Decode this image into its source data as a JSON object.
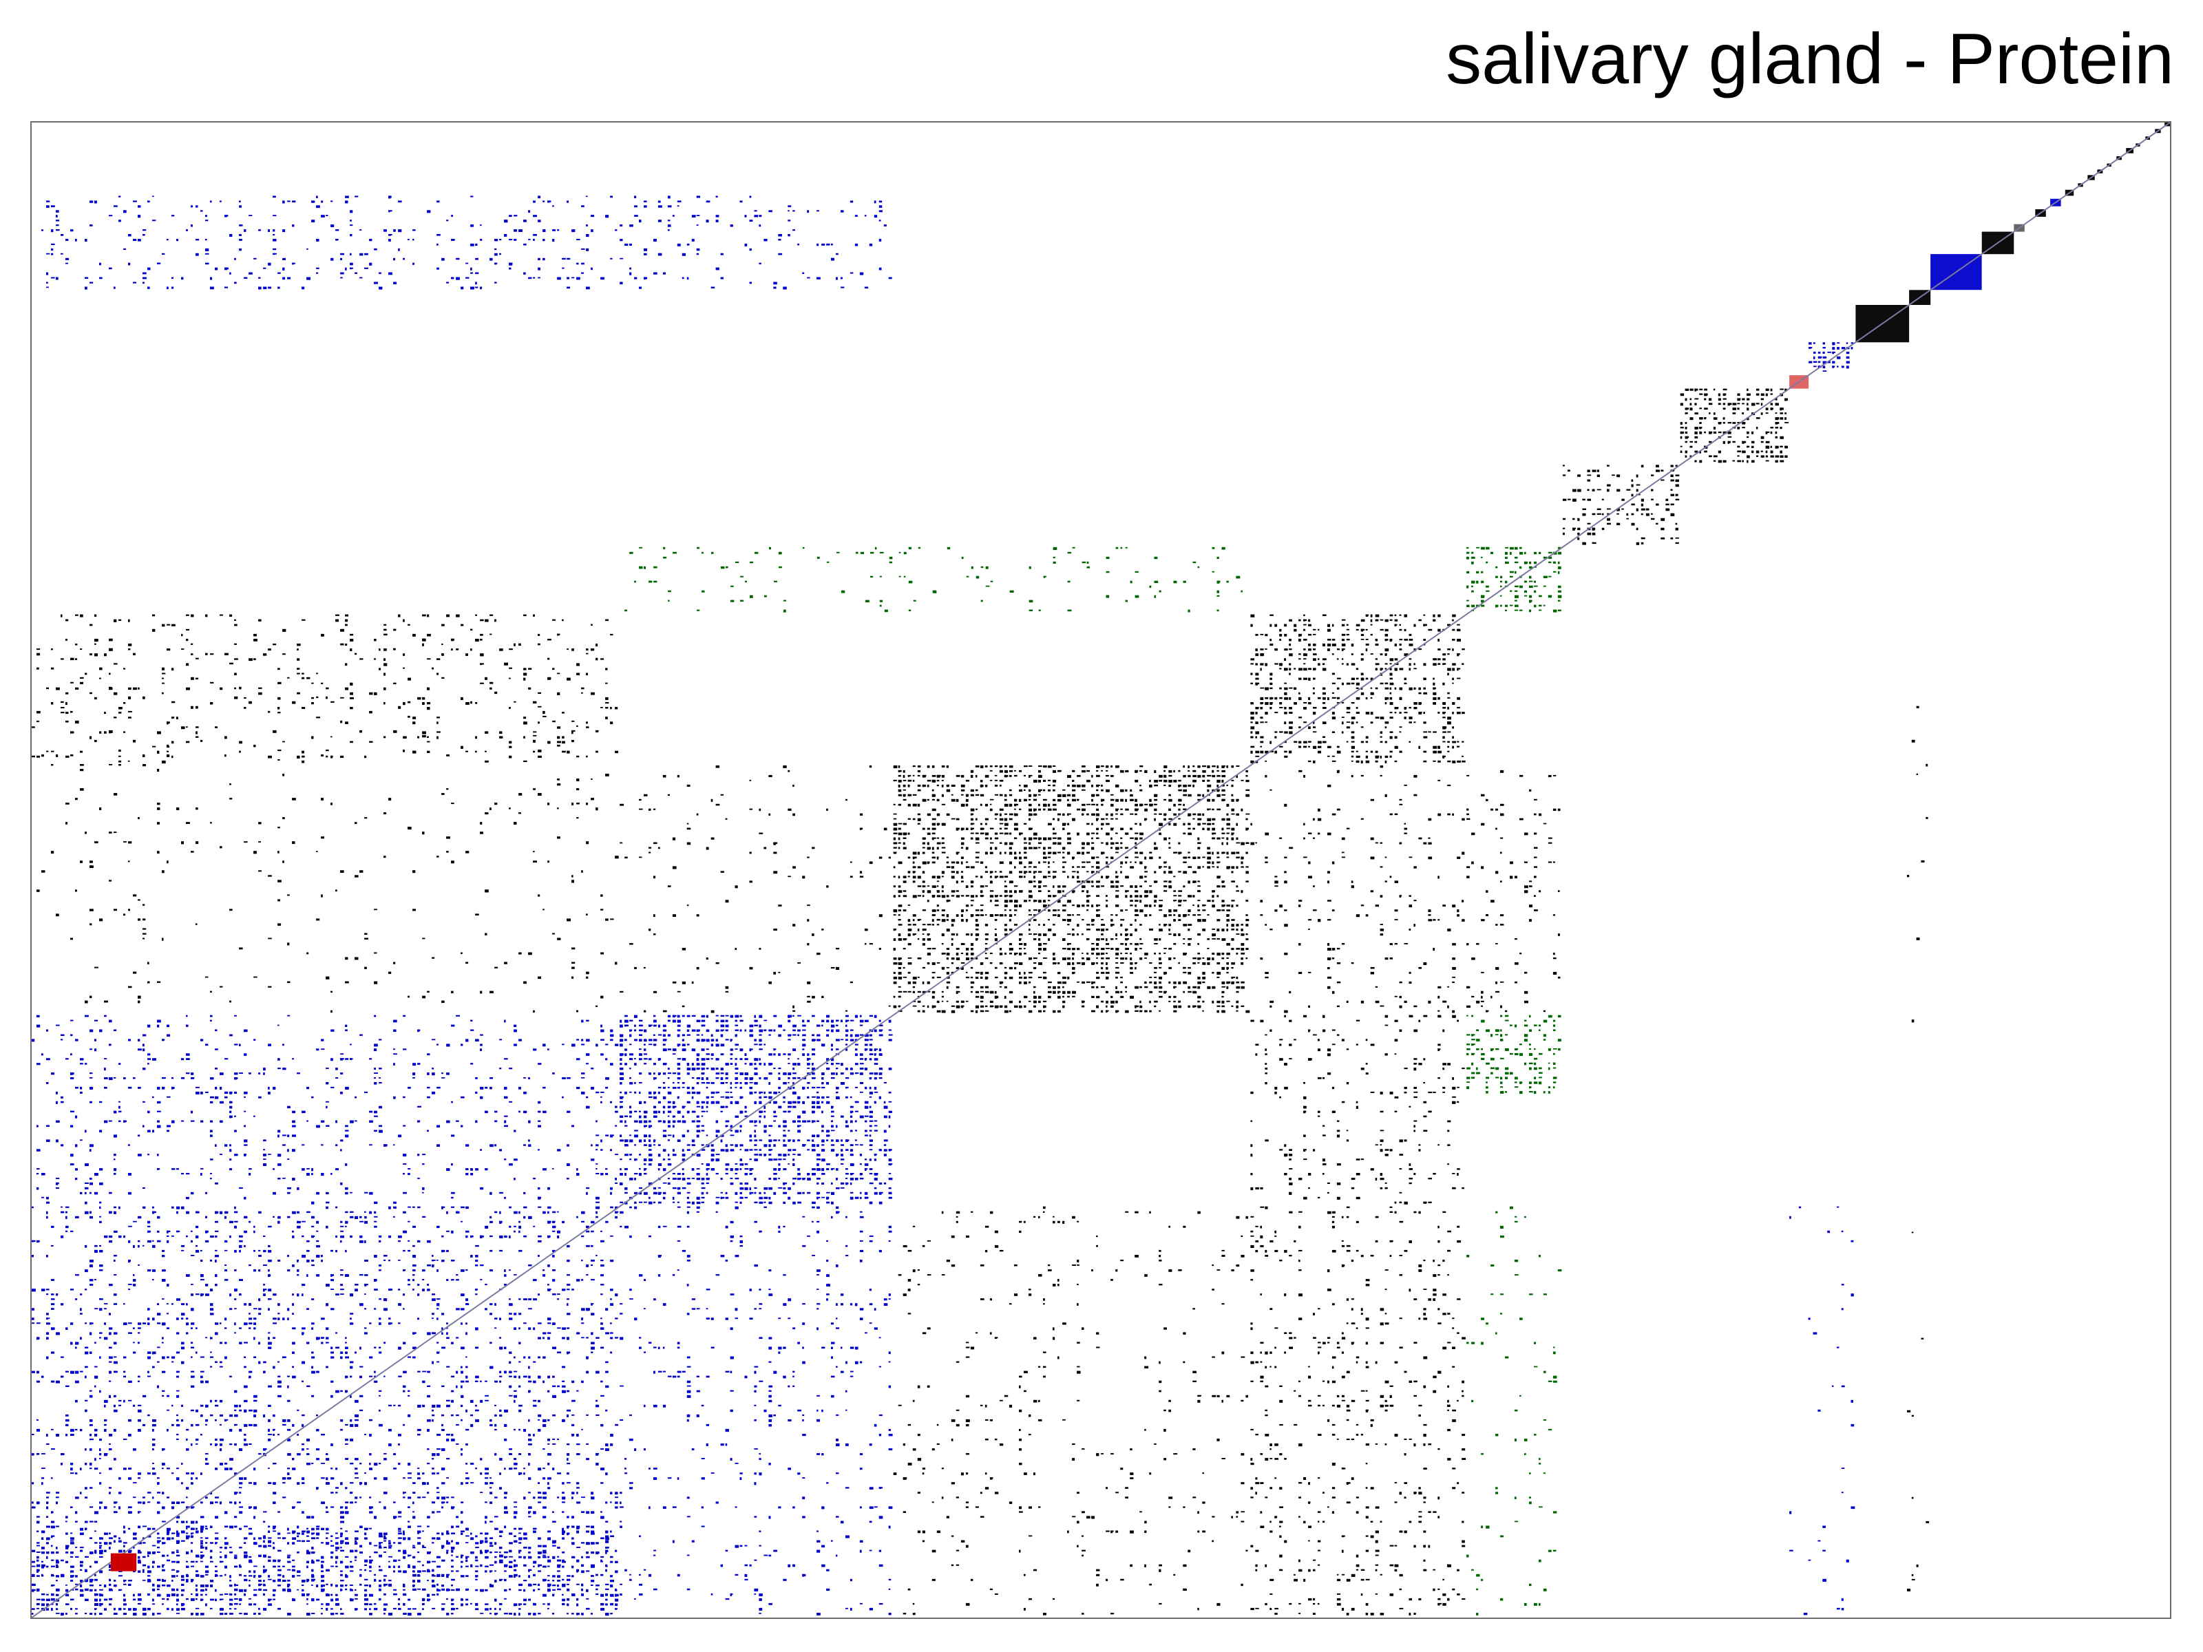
{
  "chart_data": {
    "type": "heatmap",
    "title": "salivary gland - Protein",
    "xlabel": "",
    "ylabel": "",
    "legend": "none",
    "grid": false,
    "colors": {
      "default_cell": "#000000",
      "cluster_blue": "#0000cc",
      "cluster_green": "#006600",
      "highlight_red": "#cc0000",
      "frame": "#6e6e6e",
      "diagonal": "#7a7aa0",
      "background": "#ffffff"
    },
    "clusters": [
      {
        "from": 0.0,
        "to": 0.275,
        "color": "blue",
        "density": 0.5
      },
      {
        "from": 0.275,
        "to": 0.403,
        "color": "blue",
        "density": 0.78
      },
      {
        "from": 0.403,
        "to": 0.57,
        "color": "black",
        "density": 0.72
      },
      {
        "from": 0.57,
        "to": 0.671,
        "color": "black",
        "density": 0.55
      },
      {
        "from": 0.671,
        "to": 0.716,
        "color": "green",
        "density": 0.6
      },
      {
        "from": 0.716,
        "to": 0.771,
        "color": "black",
        "density": 0.4
      },
      {
        "from": 0.771,
        "to": 0.822,
        "color": "black",
        "density": 0.85
      },
      {
        "from": 0.822,
        "to": 0.831,
        "color": "red",
        "density": 0.6
      },
      {
        "from": 0.831,
        "to": 0.853,
        "color": "blue",
        "density": 0.9
      },
      {
        "from": 0.853,
        "to": 0.878,
        "color": "black",
        "density": 1.0
      },
      {
        "from": 0.878,
        "to": 0.888,
        "color": "black",
        "density": 1.0
      },
      {
        "from": 0.888,
        "to": 0.912,
        "color": "blue",
        "density": 1.0
      },
      {
        "from": 0.912,
        "to": 0.927,
        "color": "black",
        "density": 1.0
      },
      {
        "from": 0.927,
        "to": 0.932,
        "color": "black",
        "density": 0.4
      },
      {
        "from": 0.937,
        "to": 0.942,
        "color": "black",
        "density": 1.0
      },
      {
        "from": 0.944,
        "to": 0.949,
        "color": "blue",
        "density": 1.0
      },
      {
        "from": 0.951,
        "to": 0.955,
        "color": "black",
        "density": 1.0
      }
    ],
    "off_diagonal_blocks": [
      {
        "x": [
          0.0,
          0.275
        ],
        "y": [
          0.0,
          0.06
        ],
        "color": "blue",
        "density": 0.5
      },
      {
        "x": [
          0.0,
          0.275
        ],
        "y": [
          0.275,
          0.403
        ],
        "color": "blue",
        "density": 0.15
      },
      {
        "x": [
          0.0,
          0.275
        ],
        "y": [
          0.57,
          0.671
        ],
        "color": "black",
        "density": 0.1
      },
      {
        "x": [
          0.275,
          0.403
        ],
        "y": [
          0.0,
          0.275
        ],
        "color": "blue",
        "density": 0.1
      },
      {
        "x": [
          0.403,
          0.57
        ],
        "y": [
          0.0,
          0.275
        ],
        "color": "black",
        "density": 0.06
      },
      {
        "x": [
          0.57,
          0.671
        ],
        "y": [
          0.0,
          0.275
        ],
        "color": "black",
        "density": 0.15
      },
      {
        "x": [
          0.57,
          0.671
        ],
        "y": [
          0.275,
          0.403
        ],
        "color": "black",
        "density": 0.15
      },
      {
        "x": [
          0.57,
          0.671
        ],
        "y": [
          0.403,
          0.57
        ],
        "color": "black",
        "density": 0.1
      },
      {
        "x": [
          0.671,
          0.716
        ],
        "y": [
          0.403,
          0.57
        ],
        "color": "black",
        "density": 0.12
      },
      {
        "x": [
          0.671,
          0.716
        ],
        "y": [
          0.349,
          0.403
        ],
        "color": "green",
        "density": 0.5
      },
      {
        "x": [
          0.671,
          0.716
        ],
        "y": [
          0.0,
          0.275
        ],
        "color": "green",
        "density": 0.05
      },
      {
        "x": [
          0.275,
          0.403
        ],
        "y": [
          0.403,
          0.57
        ],
        "color": "black",
        "density": 0.05
      },
      {
        "x": [
          0.0,
          0.275
        ],
        "y": [
          0.403,
          0.671
        ],
        "color": "black",
        "density": 0.04
      },
      {
        "x": [
          0.275,
          0.57
        ],
        "y": [
          0.671,
          0.716
        ],
        "color": "green",
        "density": 0.08
      },
      {
        "x": [
          0.0,
          0.275
        ],
        "y": [
          0.887,
          0.951
        ],
        "color": "blue",
        "density": 0.15
      },
      {
        "x": [
          0.275,
          0.403
        ],
        "y": [
          0.887,
          0.951
        ],
        "color": "blue",
        "density": 0.12
      },
      {
        "x": [
          0.822,
          0.853
        ],
        "y": [
          0.0,
          0.275
        ],
        "color": "blue",
        "density": 0.03
      },
      {
        "x": [
          0.877,
          0.888
        ],
        "y": [
          0.0,
          0.671
        ],
        "color": "black",
        "density": 0.02
      }
    ]
  }
}
